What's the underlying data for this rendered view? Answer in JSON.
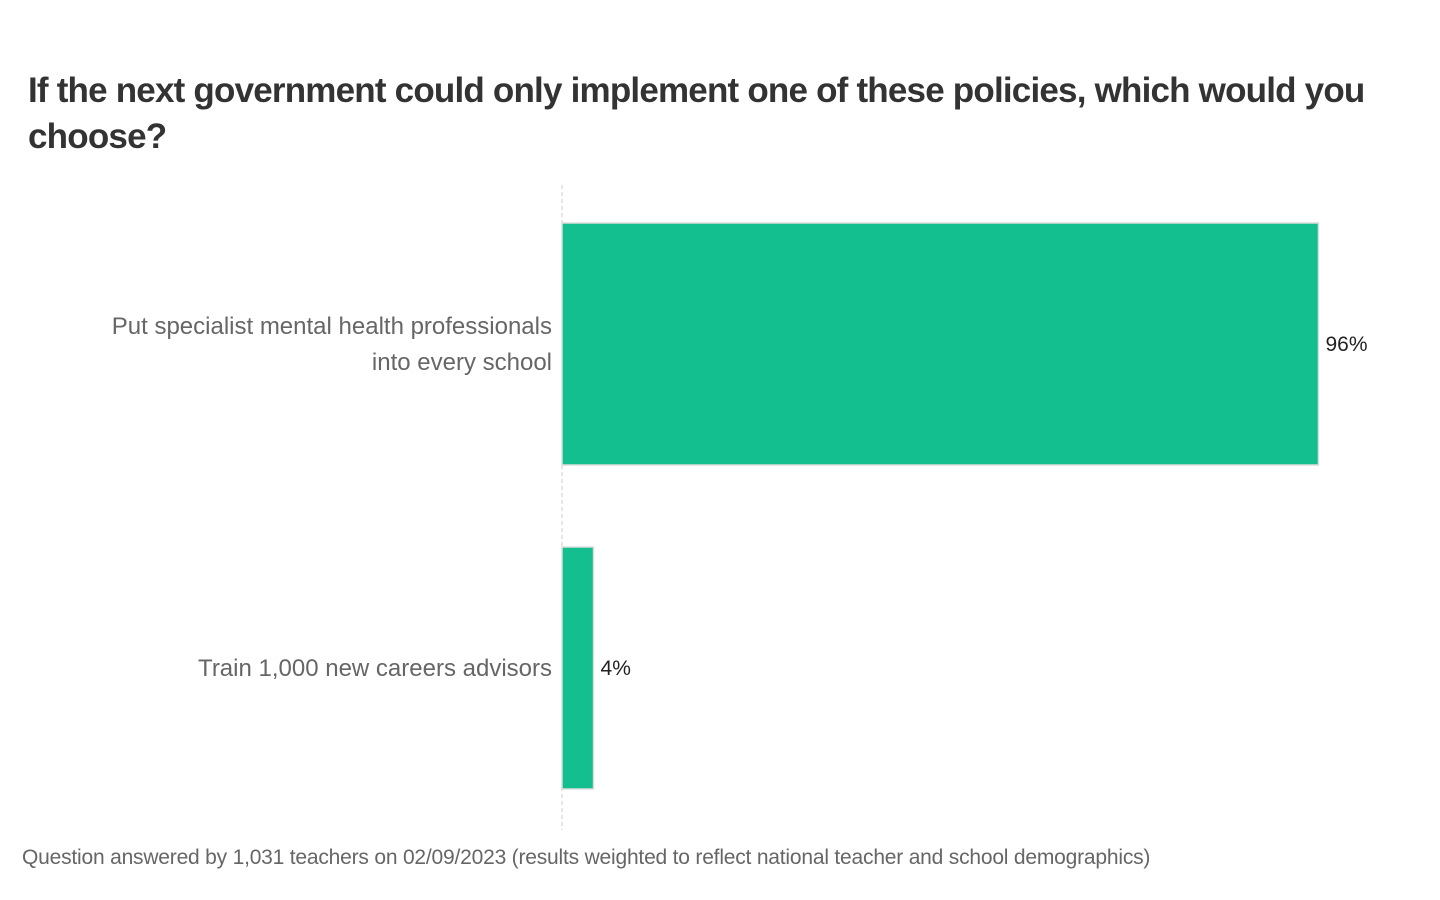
{
  "chart_data": {
    "type": "bar",
    "orientation": "horizontal",
    "title": "If the next government could only implement one of these policies, which would you choose?",
    "categories": [
      [
        "Put specialist mental health professionals",
        "into every school"
      ],
      [
        "Train 1,000 new careers advisors"
      ]
    ],
    "values": [
      96,
      4
    ],
    "value_labels": [
      "96%",
      "4%"
    ],
    "xlim": [
      0,
      100
    ],
    "xlabel": "",
    "ylabel": "",
    "grid": false,
    "bar_color": "#13be8f",
    "footnote": "Question answered by 1,031 teachers on 02/09/2023 (results weighted to reflect national teacher and school demographics)"
  }
}
